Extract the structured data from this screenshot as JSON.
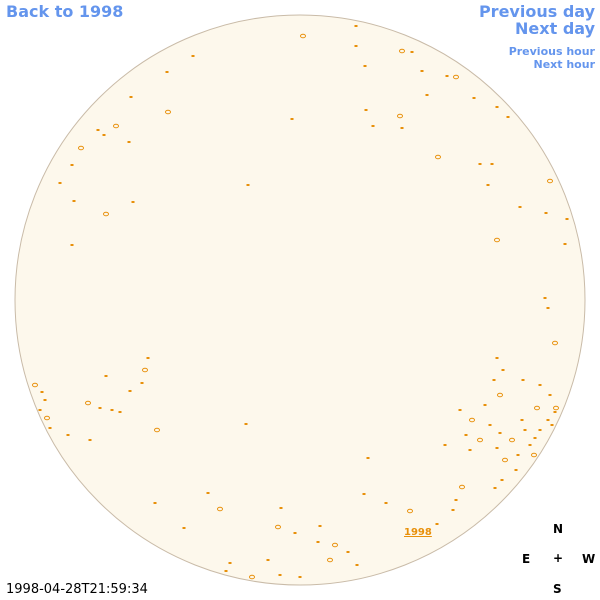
{
  "navigation": {
    "back_year": "Back to 1998",
    "previous_day": "Previous day",
    "next_day": "Next day",
    "previous_hour": "Previous hour",
    "next_hour": "Next hour"
  },
  "map": {
    "year_label": "1998",
    "timestamp": "1998-04-28T21:59:34"
  },
  "compass": {
    "north": "N",
    "east": "E",
    "center": "+",
    "west": "W",
    "south": "S"
  }
}
